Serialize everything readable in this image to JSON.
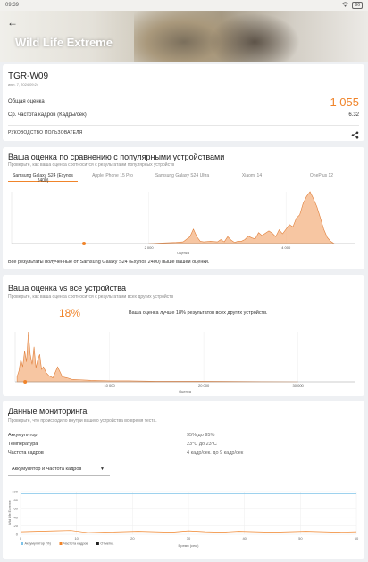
{
  "status_bar": {
    "time": "09:39",
    "battery": "96"
  },
  "header": {
    "title": "Wild Life Extreme"
  },
  "result": {
    "device": "TGR-W09",
    "date": "июн. 7, 2024 09:24",
    "overall_label": "Общая оценка",
    "overall_value": "1 055",
    "fps_label": "Ср. частота кадров (Кадры/сек)",
    "fps_value": "6.32",
    "guide_label": "РУКОВОДСТВО ПОЛЬЗОВАТЕЛЯ"
  },
  "compare": {
    "title": "Ваша оценка по сравнению с популярными устройствами",
    "subtitle": "Проверьте, как ваша оценка соотносится с результатами популярных устройств",
    "tabs": [
      "Samsung Galaxy S24 (Exynos 2400)",
      "Apple iPhone 15 Pro",
      "Samsung Galaxy S24 Ultra",
      "Xiaomi 14",
      "OnePlus 12"
    ],
    "note": "Все результаты полученные от Samsung Galaxy S24 (Exynos 2400) выше вашей оценки."
  },
  "all_devices": {
    "title": "Ваша оценка vs все устройства",
    "subtitle": "Проверьте, как ваша оценка соотносится с результатами всех других устройств",
    "percent": "18%",
    "note": "Ваша оценка лучше 18% результатов всех других устройств."
  },
  "monitoring": {
    "title": "Данные мониторинга",
    "subtitle": "Проверьте, что происходило внутри вашего устройства во время теста.",
    "rows": [
      {
        "label": "Аккумулятор",
        "value": "95% до 95%"
      },
      {
        "label": "Температура",
        "value": "23°C до 23°C"
      },
      {
        "label": "Частота кадров",
        "value": "4 кадр/сек. до 9 кадр/сек"
      }
    ],
    "dropdown": "Аккумулятор и Частота кадров"
  },
  "chart_data": [
    {
      "type": "area",
      "title": "",
      "xlabel": "Оценка",
      "ylabel": "",
      "x_ticks": [
        "2 000",
        "4 000"
      ],
      "xlim": [
        0,
        5000
      ],
      "marker": 1055,
      "x": [
        2000,
        2200,
        2400,
        2500,
        2600,
        2650,
        2700,
        2750,
        2800,
        2900,
        3000,
        3050,
        3100,
        3150,
        3200,
        3250,
        3300,
        3350,
        3400,
        3450,
        3500,
        3550,
        3600,
        3650,
        3700,
        3750,
        3800,
        3850,
        3900,
        3950,
        4000,
        4050,
        4100,
        4150,
        4200,
        4250,
        4300,
        4350,
        4400,
        4450,
        4500,
        4550,
        4600,
        4650,
        4700
      ],
      "values": [
        0,
        1,
        2,
        3,
        12,
        25,
        12,
        4,
        3,
        4,
        3,
        7,
        3,
        12,
        6,
        2,
        4,
        4,
        7,
        13,
        10,
        8,
        19,
        14,
        18,
        22,
        18,
        12,
        24,
        17,
        25,
        33,
        29,
        44,
        50,
        70,
        82,
        90,
        78,
        64,
        45,
        25,
        11,
        4,
        0
      ],
      "series_color": "#f4b383"
    },
    {
      "type": "area",
      "title": "",
      "xlabel": "Оценка",
      "ylabel": "",
      "x_ticks": [
        "10 000",
        "20 000",
        "30 000"
      ],
      "xlim": [
        0,
        36000
      ],
      "marker": 1055,
      "x": [
        200,
        400,
        600,
        800,
        1000,
        1200,
        1400,
        1600,
        1800,
        2000,
        2200,
        2400,
        2600,
        2800,
        3000,
        3300,
        3600,
        4000,
        4500,
        5000,
        5500,
        6000,
        7000,
        8000,
        10000,
        12000,
        15000,
        20000,
        30000
      ],
      "values": [
        10,
        22,
        45,
        30,
        62,
        40,
        100,
        55,
        35,
        70,
        28,
        45,
        55,
        25,
        30,
        18,
        12,
        8,
        30,
        10,
        8,
        5,
        4,
        3,
        2,
        2,
        1,
        1,
        0
      ],
      "series_color": "#f4b383"
    },
    {
      "type": "line",
      "title": "",
      "xlabel": "Время (сек.)",
      "ylabel": "Wild Life Extreme",
      "x_ticks": [
        "0",
        "10",
        "20",
        "30",
        "40",
        "50",
        "60"
      ],
      "y_ticks": [
        "0",
        "20",
        "40",
        "60",
        "80",
        "100"
      ],
      "xlim": [
        0,
        60
      ],
      "ylim": [
        0,
        100
      ],
      "legend": [
        "Аккумулятор (%)",
        "Частота кадров",
        "Отметка"
      ],
      "series": [
        {
          "name": "Аккумулятор (%)",
          "color": "#7ec3e8",
          "values": [
            95,
            95,
            95,
            95,
            95,
            95,
            95
          ]
        },
        {
          "name": "Частота кадров",
          "color": "#f0842a",
          "values": [
            6,
            7,
            8,
            9,
            4,
            5,
            6,
            7,
            6,
            5,
            8,
            6,
            5,
            7,
            6,
            5,
            6,
            7,
            6,
            5,
            6
          ]
        }
      ]
    }
  ]
}
